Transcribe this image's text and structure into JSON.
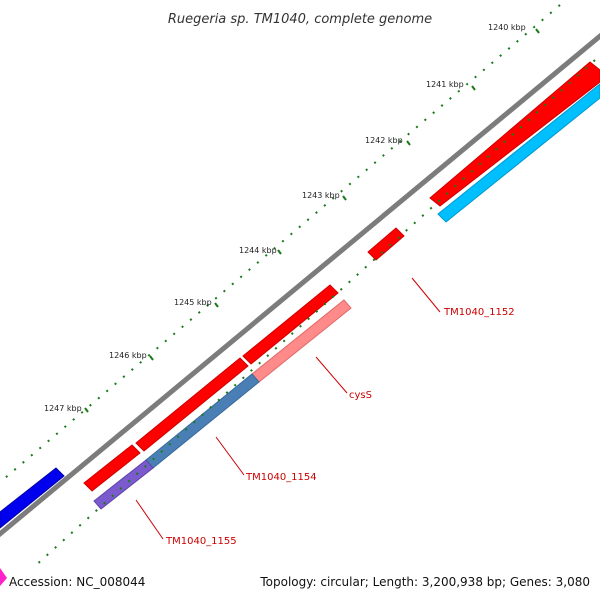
{
  "title": "Ruegeria sp. TM1040, complete genome",
  "accession_label": "Accession: NC_008044",
  "summary_label": "Topology: circular; Length: 3,200,938 bp; Genes: 3,080",
  "scale_labels": [
    "1240 kbp",
    "1241 kbp",
    "1242 kbp",
    "1243 kbp",
    "1244 kbp",
    "1245 kbp",
    "1246 kbp",
    "1247 kbp"
  ],
  "gene_labels": [
    "TM1040_1152",
    "cysS",
    "TM1040_1154",
    "TM1040_1155"
  ],
  "colors": {
    "backbone": "#8a8a8a",
    "gene_forward": "#ff0000",
    "gene_reverse_light": "#00bfff",
    "gene_blue": "#0000ee",
    "gene_pink": "#ff8a8a",
    "gene_steel": "#4a7fb5",
    "gene_purple": "#7a5acd",
    "ticks": "#1a7a1a",
    "label": "#cc0000"
  }
}
